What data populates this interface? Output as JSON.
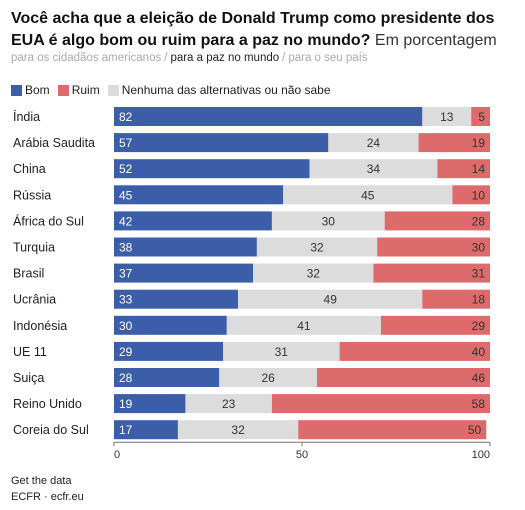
{
  "title_bold": "Você acha que a eleição de Donald Trump como presidente dos EUA é algo bom ou ruim para a paz no mundo?",
  "title_rest": "Em porcentagem",
  "tabs": [
    {
      "label": "para os cidadãos americanos",
      "active": false
    },
    {
      "label": "para a paz no mundo",
      "active": true
    },
    {
      "label": "para o seu país",
      "active": false
    }
  ],
  "footer": {
    "get_data": "Get the data",
    "source": "ECFR · ecfr.eu"
  },
  "colors": {
    "bom": "#3c5ea8",
    "ruim": "#de6b6b",
    "neutral": "#dcdcdc",
    "axis": "#777777"
  },
  "chart_data": {
    "type": "bar",
    "orientation": "horizontal",
    "stacked": true,
    "categories": [
      "Índia",
      "Arábia Saudita",
      "China",
      "Rússia",
      "África do Sul",
      "Turquia",
      "Brasil",
      "Ucrânia",
      "Indonésia",
      "UE 11",
      "Suiça",
      "Reino Unido",
      "Coreia do Sul"
    ],
    "series": [
      {
        "name": "Bom",
        "values": [
          82,
          57,
          52,
          45,
          42,
          38,
          37,
          33,
          30,
          29,
          28,
          19,
          17
        ]
      },
      {
        "name": "Ruim",
        "values": [
          5,
          19,
          14,
          10,
          28,
          30,
          31,
          18,
          29,
          40,
          46,
          58,
          50
        ]
      },
      {
        "name": "Nenhuma das alternativas ou não sabe",
        "values": [
          13,
          24,
          34,
          45,
          30,
          32,
          32,
          49,
          41,
          31,
          26,
          23,
          32
        ]
      }
    ],
    "stack_order": [
      "Bom",
      "Nenhuma das alternativas ou não sabe",
      "Ruim"
    ],
    "xlim": [
      0,
      100
    ],
    "xticks": [
      0,
      50,
      100
    ],
    "legend_position": "top-left",
    "grid": false
  }
}
